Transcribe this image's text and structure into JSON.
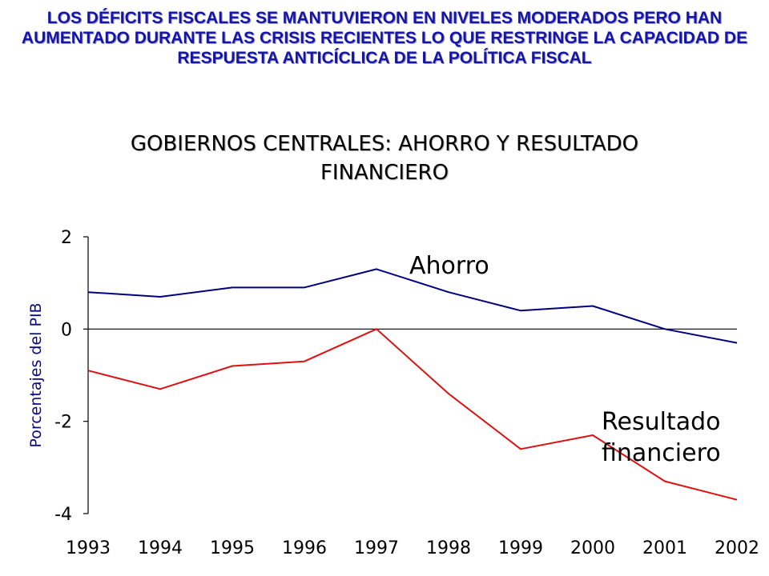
{
  "slide": {
    "headline": "LOS DÉFICITS FISCALES  SE MANTUVIERON EN NIVELES MODERADOS PERO HAN AUMENTADO DURANTE LAS CRISIS RECIENTES LO QUE RESTRINGE LA CAPACIDAD DE RESPUESTA ANTICÍCLICA DE LA POLÍTICA FISCAL"
  },
  "chart_data": {
    "type": "line",
    "title": "GOBIERNOS CENTRALES: AHORRO Y RESULTADO FINANCIERO",
    "xlabel": "",
    "ylabel": "Porcentajes del PIB",
    "x": [
      "1993",
      "1994",
      "1995",
      "1996",
      "1997",
      "1998",
      "1999",
      "2000",
      "2001",
      "2002"
    ],
    "yticks": [
      "2",
      "0",
      "-2",
      "-4"
    ],
    "ylim": [
      -4,
      2
    ],
    "grid": false,
    "legend": "none",
    "series": [
      {
        "name": "Ahorro",
        "color": "#000080",
        "values": [
          0.8,
          0.7,
          0.9,
          0.9,
          1.3,
          0.8,
          0.4,
          0.5,
          0.0,
          -0.3
        ]
      },
      {
        "name": "Resultado financiero",
        "color": "#dd1111",
        "values": [
          -0.9,
          -1.3,
          -0.8,
          -0.7,
          0.0,
          -1.4,
          -2.6,
          -2.3,
          -3.3,
          -3.7
        ]
      }
    ],
    "annotations": [
      "Ahorro",
      "Resultado",
      "financiero"
    ]
  }
}
